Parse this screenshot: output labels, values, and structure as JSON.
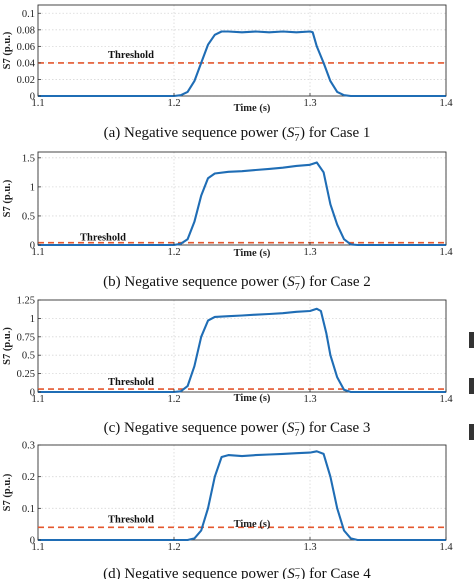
{
  "chart_data": [
    {
      "type": "line",
      "ylabel": "S7 (p.u.)",
      "xlabel": "Time (s)",
      "xlim": [
        1.1,
        1.4
      ],
      "ylim": [
        0,
        0.11
      ],
      "xticks": [
        "1.1",
        "1.2",
        "1.3",
        "1.4"
      ],
      "yticks": [
        "0",
        "0.02",
        "0.04",
        "0.06",
        "0.08",
        "0.1"
      ],
      "threshold": 0.04,
      "threshold_label": "Threshold",
      "series": [
        {
          "color": "#1f6db5",
          "points": [
            [
              1.1,
              0
            ],
            [
              1.2,
              0
            ],
            [
              1.205,
              0.001
            ],
            [
              1.21,
              0.005
            ],
            [
              1.215,
              0.018
            ],
            [
              1.22,
              0.04
            ],
            [
              1.225,
              0.062
            ],
            [
              1.23,
              0.074
            ],
            [
              1.235,
              0.078
            ],
            [
              1.24,
              0.078
            ],
            [
              1.25,
              0.077
            ],
            [
              1.26,
              0.078
            ],
            [
              1.27,
              0.077
            ],
            [
              1.28,
              0.078
            ],
            [
              1.29,
              0.077
            ],
            [
              1.3,
              0.078
            ],
            [
              1.302,
              0.077
            ],
            [
              1.305,
              0.06
            ],
            [
              1.31,
              0.04
            ],
            [
              1.315,
              0.018
            ],
            [
              1.32,
              0.005
            ],
            [
              1.325,
              0.001
            ],
            [
              1.33,
              0
            ],
            [
              1.4,
              0
            ]
          ]
        }
      ],
      "caption_prefix": "(a) Negative sequence power (",
      "caption_suffix": ") for Case 1"
    },
    {
      "type": "line",
      "ylabel": "S7 (p.u.)",
      "xlabel": "Time (s)",
      "xlim": [
        1.1,
        1.4
      ],
      "ylim": [
        0,
        1.6
      ],
      "xticks": [
        "1.1",
        "1.2",
        "1.3",
        "1.4"
      ],
      "yticks": [
        "0",
        "0.5",
        "1",
        "1.5"
      ],
      "threshold": 0.04,
      "threshold_label": "Threshold",
      "series": [
        {
          "color": "#1f6db5",
          "points": [
            [
              1.1,
              0
            ],
            [
              1.2,
              0
            ],
            [
              1.205,
              0.02
            ],
            [
              1.21,
              0.1
            ],
            [
              1.215,
              0.4
            ],
            [
              1.22,
              0.85
            ],
            [
              1.225,
              1.15
            ],
            [
              1.23,
              1.23
            ],
            [
              1.24,
              1.26
            ],
            [
              1.25,
              1.27
            ],
            [
              1.26,
              1.29
            ],
            [
              1.27,
              1.31
            ],
            [
              1.28,
              1.33
            ],
            [
              1.29,
              1.36
            ],
            [
              1.3,
              1.38
            ],
            [
              1.305,
              1.42
            ],
            [
              1.31,
              1.25
            ],
            [
              1.315,
              0.7
            ],
            [
              1.32,
              0.35
            ],
            [
              1.325,
              0.1
            ],
            [
              1.33,
              0.01
            ],
            [
              1.335,
              0
            ],
            [
              1.4,
              0
            ]
          ]
        }
      ],
      "caption_prefix": "(b) Negative sequence power (",
      "caption_suffix": ") for Case 2"
    },
    {
      "type": "line",
      "ylabel": "S7 (p.u.)",
      "xlabel": "Time (s)",
      "xlim": [
        1.1,
        1.4
      ],
      "ylim": [
        0,
        1.25
      ],
      "xticks": [
        "1.1",
        "1.2",
        "1.3",
        "1.4"
      ],
      "yticks": [
        "0",
        "0.25",
        "0.5",
        "0.75",
        "1",
        "1.25"
      ],
      "threshold": 0.04,
      "threshold_label": "Threshold",
      "series": [
        {
          "color": "#1f6db5",
          "points": [
            [
              1.1,
              0
            ],
            [
              1.2,
              0
            ],
            [
              1.205,
              0.01
            ],
            [
              1.21,
              0.08
            ],
            [
              1.215,
              0.35
            ],
            [
              1.22,
              0.75
            ],
            [
              1.225,
              0.97
            ],
            [
              1.23,
              1.02
            ],
            [
              1.24,
              1.03
            ],
            [
              1.25,
              1.04
            ],
            [
              1.26,
              1.05
            ],
            [
              1.27,
              1.06
            ],
            [
              1.28,
              1.07
            ],
            [
              1.29,
              1.09
            ],
            [
              1.3,
              1.1
            ],
            [
              1.305,
              1.13
            ],
            [
              1.308,
              1.1
            ],
            [
              1.312,
              0.8
            ],
            [
              1.315,
              0.5
            ],
            [
              1.32,
              0.2
            ],
            [
              1.325,
              0.03
            ],
            [
              1.33,
              0
            ],
            [
              1.4,
              0
            ]
          ]
        }
      ],
      "caption_prefix": "(c) Negative sequence power (",
      "caption_suffix": ") for Case 3"
    },
    {
      "type": "line",
      "ylabel": "S7 (p.u.)",
      "xlabel": "Time (s)",
      "xlim": [
        1.1,
        1.4
      ],
      "ylim": [
        0,
        0.3
      ],
      "xticks": [
        "1.1",
        "1.2",
        "1.3",
        "1.4"
      ],
      "yticks": [
        "0",
        "0.1",
        "0.2",
        "0.3"
      ],
      "threshold": 0.04,
      "threshold_label": "Threshold",
      "series": [
        {
          "color": "#1f6db5",
          "points": [
            [
              1.1,
              0
            ],
            [
              1.21,
              0
            ],
            [
              1.215,
              0.005
            ],
            [
              1.22,
              0.03
            ],
            [
              1.225,
              0.1
            ],
            [
              1.23,
              0.2
            ],
            [
              1.235,
              0.262
            ],
            [
              1.24,
              0.268
            ],
            [
              1.25,
              0.265
            ],
            [
              1.26,
              0.268
            ],
            [
              1.27,
              0.27
            ],
            [
              1.28,
              0.272
            ],
            [
              1.29,
              0.274
            ],
            [
              1.3,
              0.276
            ],
            [
              1.305,
              0.28
            ],
            [
              1.31,
              0.272
            ],
            [
              1.315,
              0.2
            ],
            [
              1.32,
              0.1
            ],
            [
              1.325,
              0.03
            ],
            [
              1.33,
              0.005
            ],
            [
              1.335,
              0
            ],
            [
              1.4,
              0
            ]
          ]
        }
      ],
      "caption_prefix": "(d) Negative sequence power (",
      "caption_suffix": ") for Case 4"
    }
  ],
  "colors": {
    "series": "#1f6db5",
    "threshold": "#e4572e",
    "grid": "#d8d8d8"
  },
  "symbol": {
    "base": "S",
    "sub": "7",
    "sup": "−"
  }
}
